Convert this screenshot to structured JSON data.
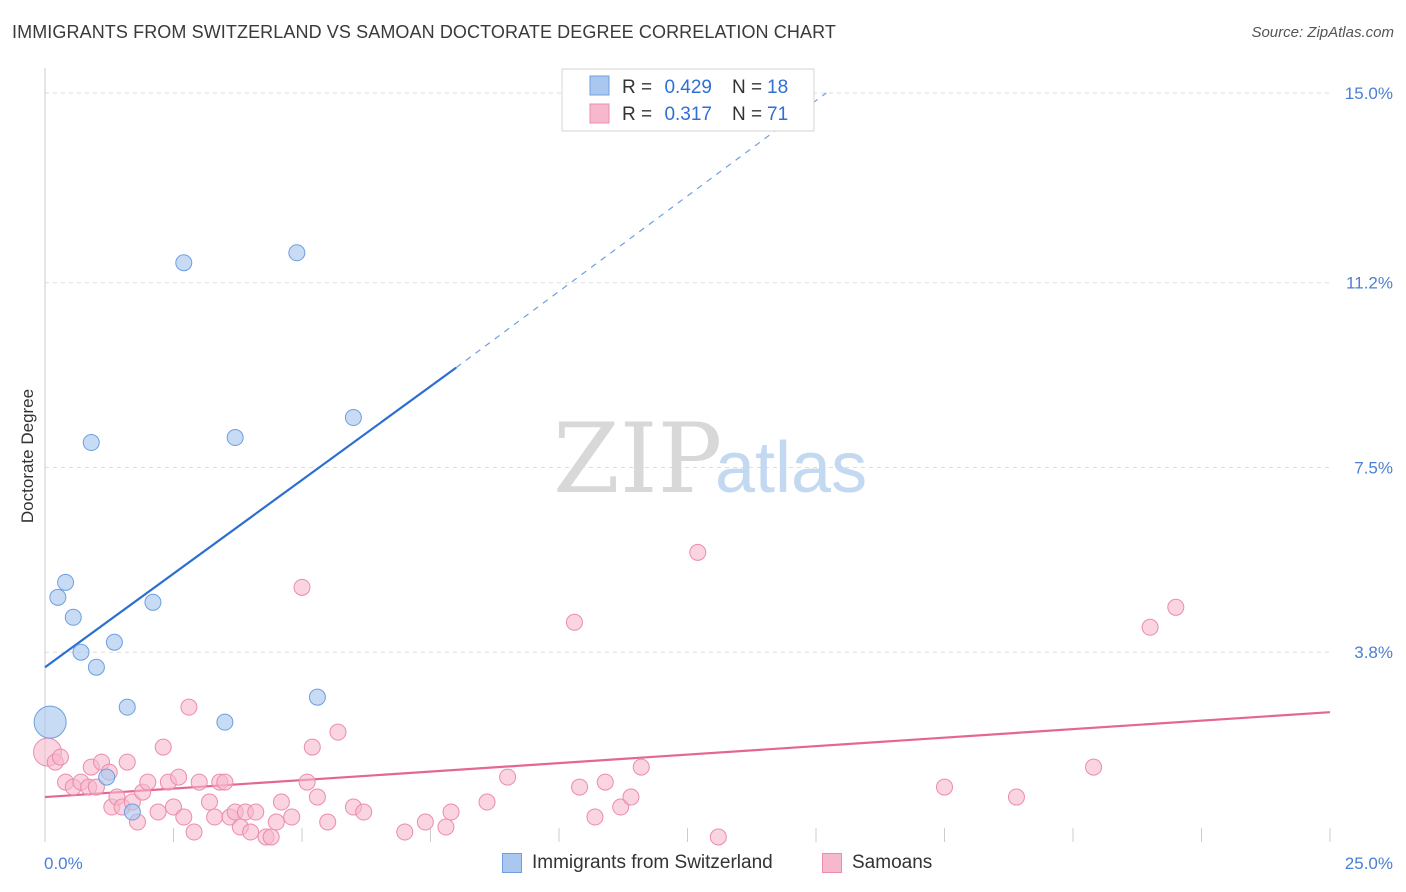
{
  "title": "IMMIGRANTS FROM SWITZERLAND VS SAMOAN DOCTORATE DEGREE CORRELATION CHART",
  "source": "Source: ZipAtlas.com",
  "watermark": {
    "zip": "ZIP",
    "atlas": "atlas"
  },
  "colors": {
    "blue_fill": "#aac8ef",
    "blue_stroke": "#6d9fe0",
    "blue_line": "#2a6fd1",
    "pink_fill": "#f6b8cc",
    "pink_stroke": "#ec8cab",
    "pink_line": "#e4678f",
    "grid": "#dddddd",
    "tick_text": "#4a7fd4"
  },
  "legend": {
    "r_label": "R =",
    "n_label": "N =",
    "rows": [
      {
        "r": "0.429",
        "n": "18",
        "series": "blue"
      },
      {
        "r": "0.317",
        "n": "71",
        "series": "pink"
      }
    ]
  },
  "bottom_legend": [
    "Immigrants from Switzerland",
    "Samoans"
  ],
  "chart_data": {
    "type": "scatter",
    "title": "IMMIGRANTS FROM SWITZERLAND VS SAMOAN DOCTORATE DEGREE CORRELATION CHART",
    "xlabel": "",
    "ylabel": "Doctorate Degree",
    "xlim": [
      0,
      25
    ],
    "ylim": [
      0,
      15.5
    ],
    "x_tick_labels": [
      "0.0%",
      "25.0%"
    ],
    "y_ticks": [
      3.8,
      7.5,
      11.2,
      15.0
    ],
    "y_tick_labels": [
      "3.8%",
      "7.5%",
      "11.2%",
      "15.0%"
    ],
    "grid": true,
    "legend_position": "top-center",
    "series": [
      {
        "name": "Immigrants from Switzerland",
        "color": "blue",
        "points": [
          [
            0.1,
            2.4
          ],
          [
            0.25,
            4.9
          ],
          [
            0.4,
            5.2
          ],
          [
            0.55,
            4.5
          ],
          [
            0.7,
            3.8
          ],
          [
            0.9,
            8.0
          ],
          [
            1.0,
            3.5
          ],
          [
            1.35,
            4.0
          ],
          [
            1.2,
            1.3
          ],
          [
            1.6,
            2.7
          ],
          [
            1.7,
            0.6
          ],
          [
            2.1,
            4.8
          ],
          [
            2.7,
            11.6
          ],
          [
            3.5,
            2.4
          ],
          [
            3.7,
            8.1
          ],
          [
            4.9,
            11.8
          ],
          [
            5.3,
            2.9
          ],
          [
            6.0,
            8.5
          ]
        ],
        "trend": {
          "x0": 0.0,
          "y0": 3.5,
          "x1": 8.0,
          "y1": 9.5,
          "dash_x1": 15.2,
          "dash_y1": 15.0
        }
      },
      {
        "name": "Samoans",
        "color": "pink",
        "points": [
          [
            0.05,
            1.8
          ],
          [
            0.2,
            1.6
          ],
          [
            0.3,
            1.7
          ],
          [
            0.4,
            1.2
          ],
          [
            0.55,
            1.1
          ],
          [
            0.7,
            1.2
          ],
          [
            0.85,
            1.1
          ],
          [
            0.9,
            1.5
          ],
          [
            1.0,
            1.1
          ],
          [
            1.1,
            1.6
          ],
          [
            1.25,
            1.4
          ],
          [
            1.3,
            0.7
          ],
          [
            1.4,
            0.9
          ],
          [
            1.5,
            0.7
          ],
          [
            1.6,
            1.6
          ],
          [
            1.7,
            0.8
          ],
          [
            1.8,
            0.4
          ],
          [
            1.9,
            1.0
          ],
          [
            2.0,
            1.2
          ],
          [
            2.2,
            0.6
          ],
          [
            2.3,
            1.9
          ],
          [
            2.4,
            1.2
          ],
          [
            2.5,
            0.7
          ],
          [
            2.6,
            1.3
          ],
          [
            2.7,
            0.5
          ],
          [
            2.8,
            2.7
          ],
          [
            2.9,
            0.2
          ],
          [
            3.0,
            1.2
          ],
          [
            3.2,
            0.8
          ],
          [
            3.3,
            0.5
          ],
          [
            3.4,
            1.2
          ],
          [
            3.5,
            1.2
          ],
          [
            3.6,
            0.5
          ],
          [
            3.7,
            0.6
          ],
          [
            3.8,
            0.3
          ],
          [
            3.9,
            0.6
          ],
          [
            4.0,
            0.2
          ],
          [
            4.1,
            0.6
          ],
          [
            4.3,
            0.1
          ],
          [
            4.4,
            0.1
          ],
          [
            4.5,
            0.4
          ],
          [
            4.6,
            0.8
          ],
          [
            4.8,
            0.5
          ],
          [
            5.0,
            5.1
          ],
          [
            5.1,
            1.2
          ],
          [
            5.2,
            1.9
          ],
          [
            5.3,
            0.9
          ],
          [
            5.5,
            0.4
          ],
          [
            5.7,
            2.2
          ],
          [
            6.0,
            0.7
          ],
          [
            6.2,
            0.6
          ],
          [
            7.0,
            0.2
          ],
          [
            7.4,
            0.4
          ],
          [
            7.8,
            0.3
          ],
          [
            7.9,
            0.6
          ],
          [
            8.6,
            0.8
          ],
          [
            9.0,
            1.3
          ],
          [
            10.3,
            4.4
          ],
          [
            10.4,
            1.1
          ],
          [
            10.7,
            0.5
          ],
          [
            10.9,
            1.2
          ],
          [
            11.2,
            0.7
          ],
          [
            11.4,
            0.9
          ],
          [
            11.6,
            1.5
          ],
          [
            12.7,
            5.8
          ],
          [
            13.1,
            0.1
          ],
          [
            17.5,
            1.1
          ],
          [
            18.9,
            0.9
          ],
          [
            20.4,
            1.5
          ],
          [
            21.5,
            4.3
          ],
          [
            22.0,
            4.7
          ]
        ],
        "trend": {
          "x0": 0.0,
          "y0": 0.9,
          "x1": 25.0,
          "y1": 2.6
        }
      }
    ]
  }
}
